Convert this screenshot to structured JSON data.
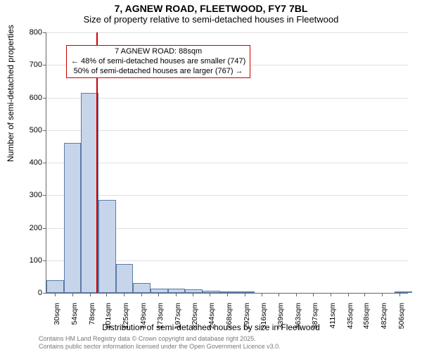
{
  "chart": {
    "type": "histogram",
    "title_line1": "7, AGNEW ROAD, FLEETWOOD, FY7 7BL",
    "title_line2": "Size of property relative to semi-detached houses in Fleetwood",
    "title_fontsize_line1": 14,
    "title_fontsize_line2": 13,
    "x_axis_label": "Distribution of semi-detached houses by size in Fleetwood",
    "y_axis_label": "Number of semi-detached properties",
    "label_fontsize": 12,
    "background_color": "#ffffff",
    "grid_color": "#e0e0e0",
    "axis_color": "#666666",
    "bar_fill_color": "#c7d5eb",
    "bar_border_color": "#5b7ba8",
    "vline_color": "#cc0000",
    "annotation_border_color": "#cc0000",
    "annotation_bg_color": "#ffffff",
    "ylim": [
      0,
      800
    ],
    "yticks": [
      0,
      100,
      200,
      300,
      400,
      500,
      600,
      700,
      800
    ],
    "xlim": [
      18,
      518
    ],
    "xticks": [
      30,
      54,
      78,
      101,
      125,
      149,
      173,
      197,
      220,
      244,
      268,
      292,
      316,
      339,
      363,
      387,
      411,
      435,
      458,
      482,
      506
    ],
    "xtick_unit": "sqm",
    "tick_fontsize": 11,
    "bar_bin_width": 24,
    "bars": [
      {
        "x_start": 18,
        "count": 40
      },
      {
        "x_start": 42,
        "count": 460
      },
      {
        "x_start": 66,
        "count": 615
      },
      {
        "x_start": 90,
        "count": 285
      },
      {
        "x_start": 114,
        "count": 88
      },
      {
        "x_start": 138,
        "count": 30
      },
      {
        "x_start": 162,
        "count": 12
      },
      {
        "x_start": 186,
        "count": 12
      },
      {
        "x_start": 210,
        "count": 10
      },
      {
        "x_start": 234,
        "count": 6
      },
      {
        "x_start": 258,
        "count": 4
      },
      {
        "x_start": 282,
        "count": 2
      },
      {
        "x_start": 500,
        "count": 2
      }
    ],
    "vline_x": 88,
    "annotation": {
      "line1": "7 AGNEW ROAD: 88sqm",
      "line2": "← 48% of semi-detached houses are smaller (747)",
      "line3": "50% of semi-detached houses are larger (767) →",
      "fontsize": 11
    },
    "footer_line1": "Contains HM Land Registry data © Crown copyright and database right 2025.",
    "footer_line2": "Contains public sector information licensed under the Open Government Licence v3.0.",
    "footer_color": "#777777",
    "footer_fontsize": 9
  }
}
